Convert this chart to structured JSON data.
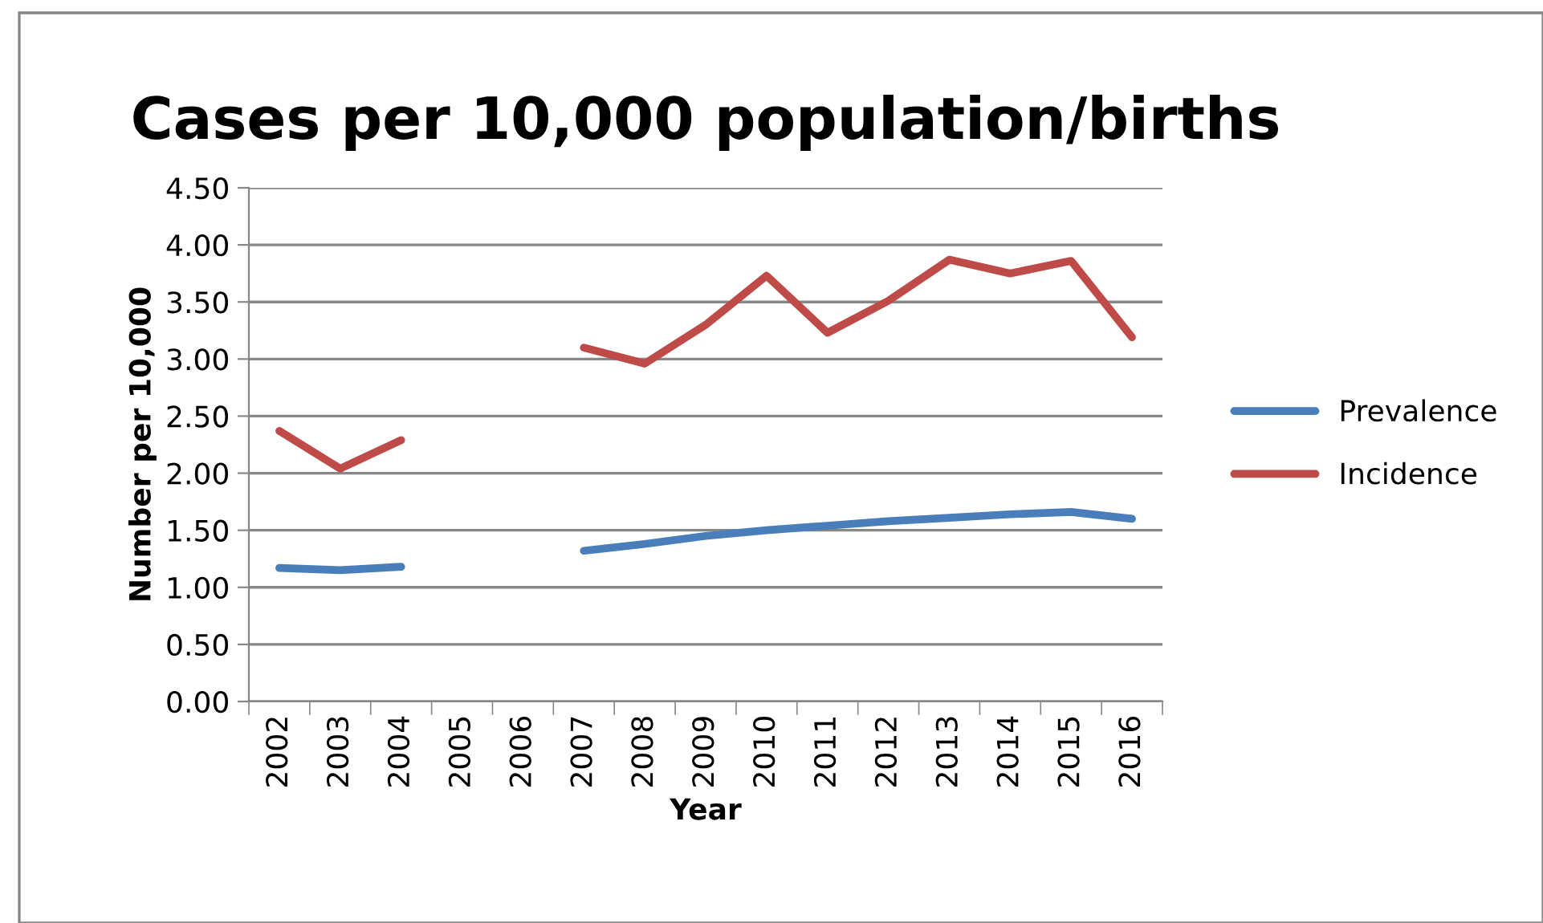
{
  "chart_data": {
    "type": "line",
    "title": "Cases per 10,000 population/births",
    "xlabel": "Year",
    "ylabel": "Number per 10,000",
    "categories": [
      "2002",
      "2003",
      "2004",
      "2005",
      "2006",
      "2007",
      "2008",
      "2009",
      "2010",
      "2011",
      "2012",
      "2013",
      "2014",
      "2015",
      "2016"
    ],
    "series": [
      {
        "name": "Prevalence",
        "color": "#4a7ebb",
        "values": [
          1.17,
          1.15,
          1.18,
          null,
          null,
          1.32,
          1.38,
          1.45,
          1.5,
          1.54,
          1.58,
          1.61,
          1.64,
          1.66,
          1.6
        ]
      },
      {
        "name": "Incidence",
        "color": "#be4b48",
        "values": [
          2.37,
          2.04,
          2.29,
          null,
          null,
          3.1,
          2.96,
          3.3,
          3.73,
          3.23,
          3.51,
          3.87,
          3.75,
          3.86,
          3.19
        ]
      }
    ],
    "ylim": [
      0,
      4.5
    ],
    "yticks": [
      {
        "value": 0,
        "label": "0.00"
      },
      {
        "value": 0.5,
        "label": "0.50"
      },
      {
        "value": 1,
        "label": "1.00"
      },
      {
        "value": 1.5,
        "label": "1.50"
      },
      {
        "value": 2,
        "label": "2.00"
      },
      {
        "value": 2.5,
        "label": "2.50"
      },
      {
        "value": 3,
        "label": "3.00"
      },
      {
        "value": 3.5,
        "label": "3.50"
      },
      {
        "value": 4,
        "label": "4.00"
      },
      {
        "value": 4.5,
        "label": "4.50"
      }
    ],
    "grid": "y",
    "legend": "right",
    "marker": "none",
    "line_style": "solid"
  }
}
